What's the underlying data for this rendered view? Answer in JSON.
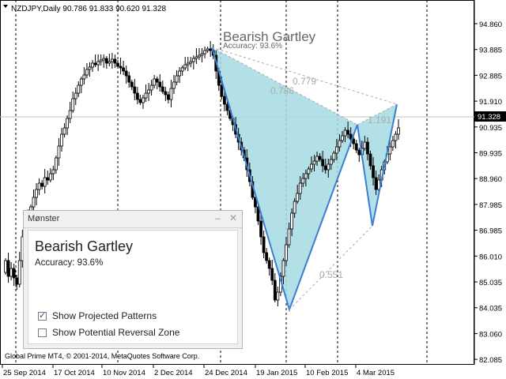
{
  "chart": {
    "symbol_info": "NZDJPY,Daily  90.786 91.833 90.620 91.328",
    "price_labels": [
      "94.860",
      "93.885",
      "92.885",
      "91.910",
      "90.935",
      "89.935",
      "88.960",
      "87.985",
      "86.985",
      "86.010",
      "85.035",
      "84.035",
      "83.060",
      "82.085"
    ],
    "current_price": "91.328",
    "date_labels": [
      "25 Sep 2014",
      "17 Oct 2014",
      "10 Nov 2014",
      "2 Dec 2014",
      "24 Dec 2014",
      "19 Jan 2015",
      "10 Feb 2015",
      "4 Mar 2015"
    ],
    "copyright": "Global Prime MT4, © 2001-2014, MetaQuotes Software Corp.",
    "pattern_label": "Bearish Gartley",
    "pattern_accuracy": "Accuracy: 93.6%",
    "ratios": {
      "xb": "0.786",
      "xd": "0.779",
      "bc": "0.551",
      "cd": "1.191"
    },
    "colors": {
      "fill": "#a6dbe3",
      "leg": "#3a7fd0",
      "candle": "#000000",
      "grid": "#000000"
    }
  },
  "panel": {
    "title": "Mønster",
    "minimize_icon": "–",
    "close_icon": "✕",
    "pattern_name": "Bearish Gartley",
    "accuracy": "Accuracy: 93.6%",
    "options": [
      {
        "label": "Show Projected Patterns",
        "checked": true
      },
      {
        "label": "Show Potential Reversal Zone",
        "checked": false
      }
    ]
  }
}
